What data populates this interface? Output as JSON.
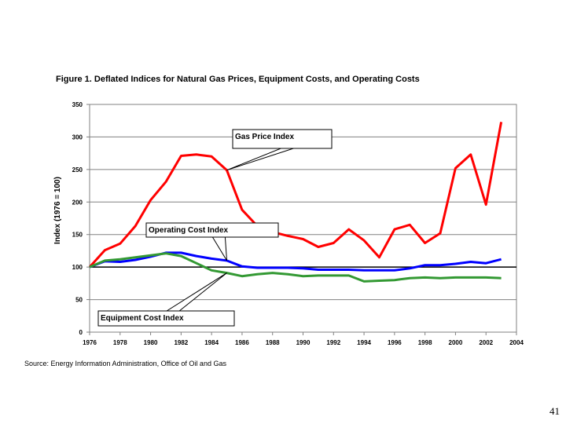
{
  "chart_data": {
    "type": "line",
    "title": "Figure 1. Deflated Indices for Natural Gas Prices, Equipment Costs, and Operating Costs",
    "xlabel": "",
    "ylabel": "Index (1976 = 100)",
    "xlim": [
      1976,
      2004
    ],
    "ylim": [
      0,
      350
    ],
    "xticks": [
      1976,
      1978,
      1980,
      1982,
      1984,
      1986,
      1988,
      1990,
      1992,
      1994,
      1996,
      1998,
      2000,
      2002,
      2004
    ],
    "yticks": [
      0,
      50,
      100,
      150,
      200,
      250,
      300,
      350
    ],
    "grid": true,
    "reference_line": 100,
    "series": [
      {
        "name": "Gas Price Index",
        "color": "#ff0000",
        "x": [
          1976,
          1977,
          1978,
          1979,
          1980,
          1981,
          1982,
          1983,
          1984,
          1985,
          1986,
          1987,
          1988,
          1989,
          1990,
          1991,
          1992,
          1993,
          1994,
          1995,
          1996,
          1997,
          1998,
          1999,
          2000,
          2001,
          2002,
          2003
        ],
        "values": [
          100,
          126,
          136,
          163,
          203,
          231,
          271,
          273,
          270,
          249,
          188,
          163,
          154,
          148,
          143,
          131,
          137,
          158,
          141,
          115,
          158,
          165,
          137,
          152,
          252,
          273,
          196,
          323
        ]
      },
      {
        "name": "Operating Cost Index",
        "color": "#0000ff",
        "x": [
          1976,
          1977,
          1978,
          1979,
          1980,
          1981,
          1982,
          1983,
          1984,
          1985,
          1986,
          1987,
          1988,
          1989,
          1990,
          1991,
          1992,
          1993,
          1994,
          1995,
          1996,
          1997,
          1998,
          1999,
          2000,
          2001,
          2002,
          2003
        ],
        "values": [
          100,
          109,
          108,
          111,
          116,
          122,
          122,
          117,
          113,
          110,
          101,
          99,
          99,
          99,
          98,
          96,
          96,
          96,
          95,
          95,
          95,
          98,
          103,
          103,
          105,
          108,
          106,
          112
        ]
      },
      {
        "name": "Equipment Cost Index",
        "color": "#339933",
        "x": [
          1976,
          1977,
          1978,
          1979,
          1980,
          1981,
          1982,
          1983,
          1984,
          1985,
          1986,
          1987,
          1988,
          1989,
          1990,
          1991,
          1992,
          1993,
          1994,
          1995,
          1996,
          1997,
          1998,
          1999,
          2000,
          2001,
          2002,
          2003
        ],
        "values": [
          100,
          110,
          112,
          115,
          118,
          121,
          117,
          106,
          95,
          91,
          86,
          89,
          91,
          89,
          86,
          87,
          87,
          87,
          78,
          79,
          80,
          83,
          84,
          83,
          84,
          84,
          84,
          83
        ]
      }
    ],
    "annotations": [
      {
        "text": "Gas Price Index",
        "series": 0,
        "point_x": 1985
      },
      {
        "text": "Operating Cost Index",
        "series": 1,
        "point_x": 1985
      },
      {
        "text": "Equipment Cost Index",
        "series": 2,
        "point_x": 1985
      }
    ]
  },
  "footer": {
    "source": "Source: Energy Information Administration, Office of Oil and Gas",
    "page_number": "41"
  }
}
